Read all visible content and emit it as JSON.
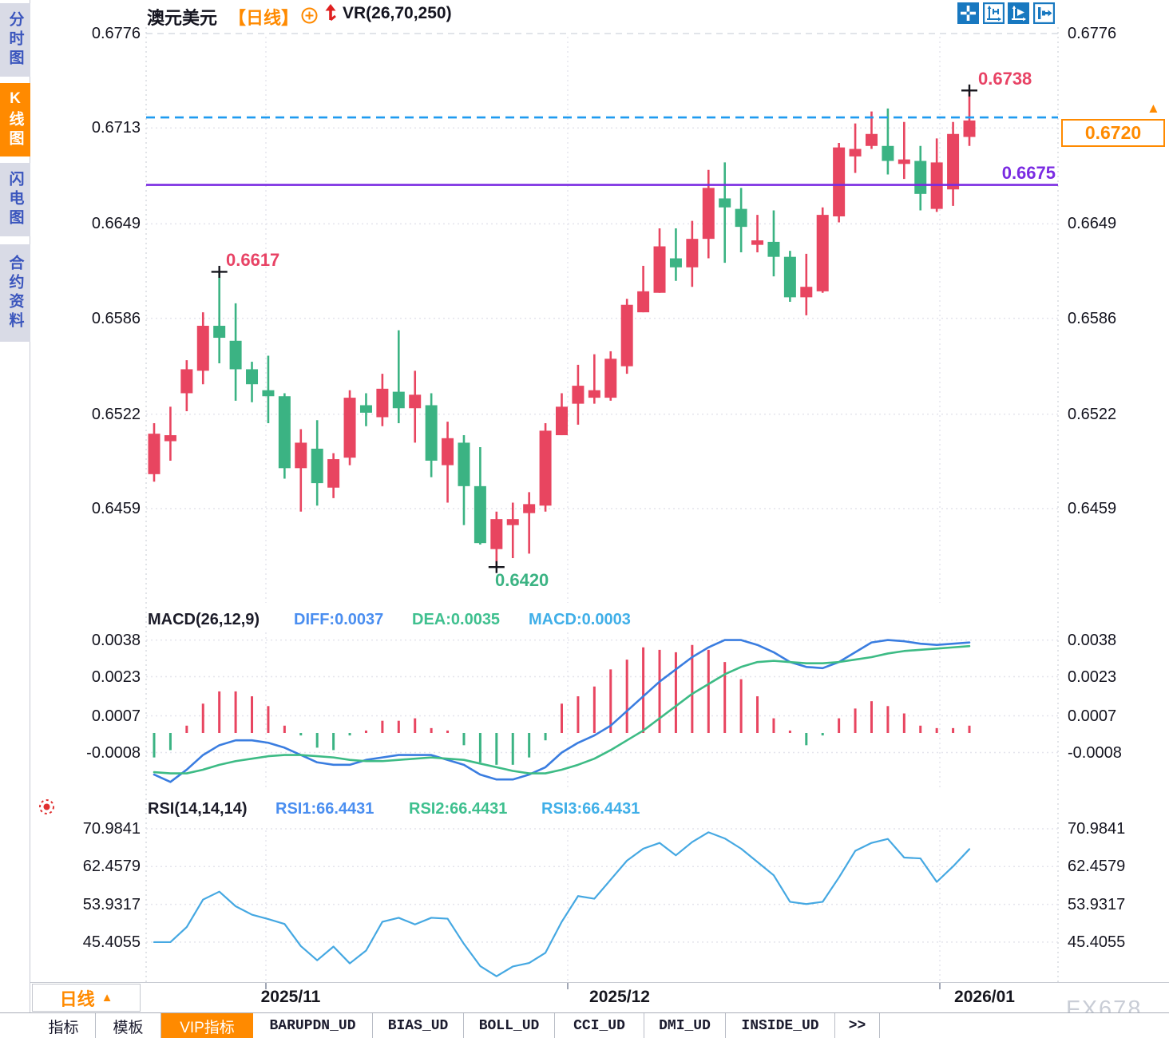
{
  "header": {
    "symbol": "澳元美元",
    "period_tag": "【日线】",
    "indicator": "VR(26,70,250)"
  },
  "sidebar": {
    "items": [
      {
        "label": "分时图",
        "active": false
      },
      {
        "label": "K线图",
        "active": true
      },
      {
        "label": "闪电图",
        "active": false
      },
      {
        "label": "合约资料",
        "active": false
      }
    ]
  },
  "toolbar": {
    "icons": [
      "pan-icon",
      "axis-scale-icon",
      "axis-auto-icon",
      "exit-icon"
    ]
  },
  "icons": {
    "up_triangle": "▲"
  },
  "price_axis": {
    "labels": [
      "0.6776",
      "0.6713",
      "0.6649",
      "0.6586",
      "0.6522",
      "0.6459"
    ]
  },
  "macd": {
    "title": "MACD(26,12,9)",
    "diff_label": "DIFF:0.0037",
    "dea_label": "DEA:0.0035",
    "macd_label": "MACD:0.0003",
    "axis": [
      "0.0038",
      "0.0023",
      "0.0007",
      "-0.0008"
    ]
  },
  "rsi": {
    "title": "RSI(14,14,14)",
    "rsi1_label": "RSI1:66.4431",
    "rsi2_label": "RSI2:66.4431",
    "rsi3_label": "RSI3:66.4431",
    "axis": [
      "70.9841",
      "62.4579",
      "53.9317",
      "45.4055"
    ]
  },
  "annotations": {
    "high_label": "0.6738",
    "peak_label": "0.6617",
    "low_label": "0.6420",
    "support_label": "0.6675",
    "current_price": "0.6720"
  },
  "x_axis": {
    "labels": [
      "2025/11",
      "2025/12",
      "2026/01"
    ]
  },
  "period_button": "日线",
  "bottom_tabs": [
    {
      "label": "指标",
      "active": false
    },
    {
      "label": "模板",
      "active": false
    },
    {
      "label": "VIP指标",
      "active": true
    },
    {
      "label": "BARUPDN_UD",
      "active": false
    },
    {
      "label": "BIAS_UD",
      "active": false
    },
    {
      "label": "BOLL_UD",
      "active": false
    },
    {
      "label": "CCI_UD",
      "active": false
    },
    {
      "label": "DMI_UD",
      "active": false
    },
    {
      "label": "INSIDE_UD",
      "active": false
    },
    {
      "label": ">>",
      "active": false
    }
  ],
  "watermark": "FX678",
  "colors": {
    "up": "#e84560",
    "down": "#3bb383",
    "accent_orange": "#ff8a00",
    "line_blue": "#3a7de0",
    "line_green": "#3dbb85",
    "line_lightblue": "#45a8e2",
    "dashed_blue": "#1f9bf0",
    "purple": "#7a2be2",
    "marker_black": "#15151c",
    "grid": "#e4e4ec",
    "grid_dash": "#d7dbe2",
    "icon_blue": "#1878c0",
    "arrow_red": "#e02020"
  },
  "chart_data": [
    {
      "type": "candlestick",
      "title": "澳元美元 日线 (AUD/USD Daily)",
      "color_rule": "red body = close>open (bullish), green body = close<open (bearish)",
      "x_labels": [
        "2025/11",
        "2025/12",
        "2026/01"
      ],
      "y_ticks": [
        0.6776,
        0.6713,
        0.6649,
        0.6586,
        0.6522,
        0.6459
      ],
      "ylim": [
        0.642,
        0.6776
      ],
      "ohlc": [
        [
          0.6482,
          0.6516,
          0.6477,
          0.6509
        ],
        [
          0.6504,
          0.6527,
          0.6491,
          0.6508
        ],
        [
          0.6536,
          0.6558,
          0.6524,
          0.6552
        ],
        [
          0.6551,
          0.659,
          0.6542,
          0.6581
        ],
        [
          0.6581,
          0.6617,
          0.6556,
          0.6573
        ],
        [
          0.6571,
          0.6596,
          0.6531,
          0.6552
        ],
        [
          0.6552,
          0.6557,
          0.653,
          0.6542
        ],
        [
          0.6538,
          0.6561,
          0.6516,
          0.6534
        ],
        [
          0.6534,
          0.6536,
          0.6479,
          0.6486
        ],
        [
          0.6486,
          0.6512,
          0.6457,
          0.6503
        ],
        [
          0.6499,
          0.6518,
          0.6461,
          0.6476
        ],
        [
          0.6473,
          0.6496,
          0.6466,
          0.6492
        ],
        [
          0.6493,
          0.6538,
          0.6488,
          0.6533
        ],
        [
          0.6528,
          0.6536,
          0.6514,
          0.6523
        ],
        [
          0.652,
          0.6549,
          0.6514,
          0.6539
        ],
        [
          0.6537,
          0.6578,
          0.6516,
          0.6526
        ],
        [
          0.6526,
          0.6551,
          0.6503,
          0.6535
        ],
        [
          0.6528,
          0.6536,
          0.648,
          0.6491
        ],
        [
          0.6488,
          0.6517,
          0.6463,
          0.6506
        ],
        [
          0.6503,
          0.6508,
          0.6448,
          0.6474
        ],
        [
          0.6474,
          0.65,
          0.6435,
          0.6436
        ],
        [
          0.6432,
          0.6457,
          0.642,
          0.6452
        ],
        [
          0.6448,
          0.6463,
          0.6426,
          0.6452
        ],
        [
          0.6456,
          0.647,
          0.6429,
          0.6462
        ],
        [
          0.6461,
          0.6516,
          0.6457,
          0.6511
        ],
        [
          0.6508,
          0.6536,
          0.6508,
          0.6527
        ],
        [
          0.6529,
          0.6555,
          0.6515,
          0.6541
        ],
        [
          0.6533,
          0.6562,
          0.6529,
          0.6538
        ],
        [
          0.6533,
          0.6564,
          0.6531,
          0.6559
        ],
        [
          0.6554,
          0.6599,
          0.6549,
          0.6595
        ],
        [
          0.659,
          0.6621,
          0.659,
          0.6604
        ],
        [
          0.6603,
          0.6646,
          0.6603,
          0.6634
        ],
        [
          0.6626,
          0.6646,
          0.6611,
          0.662
        ],
        [
          0.662,
          0.6651,
          0.6607,
          0.6639
        ],
        [
          0.6639,
          0.6685,
          0.6626,
          0.6673
        ],
        [
          0.6666,
          0.669,
          0.6623,
          0.666
        ],
        [
          0.6659,
          0.6673,
          0.663,
          0.6647
        ],
        [
          0.6635,
          0.6655,
          0.663,
          0.6638
        ],
        [
          0.6637,
          0.6658,
          0.6614,
          0.6627
        ],
        [
          0.6627,
          0.6631,
          0.6597,
          0.66
        ],
        [
          0.66,
          0.6629,
          0.6588,
          0.6607
        ],
        [
          0.6604,
          0.666,
          0.6603,
          0.6655
        ],
        [
          0.6654,
          0.6703,
          0.665,
          0.67
        ],
        [
          0.6694,
          0.6716,
          0.6683,
          0.6699
        ],
        [
          0.6701,
          0.6724,
          0.6699,
          0.6709
        ],
        [
          0.6701,
          0.6726,
          0.6682,
          0.6691
        ],
        [
          0.6689,
          0.6717,
          0.6679,
          0.6692
        ],
        [
          0.6691,
          0.6701,
          0.6658,
          0.6669
        ],
        [
          0.6659,
          0.6706,
          0.6657,
          0.669
        ],
        [
          0.6672,
          0.6717,
          0.6661,
          0.6709
        ],
        [
          0.6707,
          0.6738,
          0.6701,
          0.6718
        ]
      ],
      "hlines": [
        {
          "name": "current-price-line",
          "value": 0.672,
          "style": "dashed",
          "color": "#1f9bf0"
        },
        {
          "name": "support-line",
          "value": 0.6675,
          "style": "solid",
          "color": "#7a2be2"
        }
      ],
      "markers": [
        {
          "index": 4,
          "at": "high",
          "value": 0.6617,
          "label": "0.6617"
        },
        {
          "index": 21,
          "at": "low",
          "value": 0.642,
          "label": "0.6420"
        },
        {
          "index": 50,
          "at": "high",
          "value": 0.6738,
          "label": "0.6738"
        }
      ]
    },
    {
      "type": "bar",
      "title": "MACD(26,12,9)",
      "legend": {
        "diff": 0.0037,
        "dea": 0.0035,
        "macd": 0.0003
      },
      "y_ticks": [
        0.0038,
        0.0023,
        0.0007,
        -0.0008
      ],
      "histogram": [
        -0.001,
        -0.0007,
        0.0003,
        0.0012,
        0.0017,
        0.0017,
        0.0015,
        0.0011,
        0.0003,
        -0.0001,
        -0.0006,
        -0.0007,
        -0.0001,
        0.0001,
        0.0005,
        0.0005,
        0.0006,
        0.0002,
        0.0001,
        -0.0005,
        -0.0012,
        -0.0013,
        -0.0013,
        -0.001,
        -0.0003,
        0.0012,
        0.0015,
        0.0019,
        0.0026,
        0.003,
        0.0035,
        0.0034,
        0.0033,
        0.0036,
        0.0034,
        0.0029,
        0.0022,
        0.0015,
        0.0006,
        0.0001,
        -0.0005,
        -0.0001,
        0.0006,
        0.001,
        0.0013,
        0.0011,
        0.0008,
        0.0003,
        0.0002,
        0.0002,
        0.0003
      ],
      "diff": [
        -0.0017,
        -0.002,
        -0.0015,
        -0.0009,
        -0.0005,
        -0.0003,
        -0.0003,
        -0.0004,
        -0.0006,
        -0.0009,
        -0.0012,
        -0.0013,
        -0.0013,
        -0.0011,
        -0.001,
        -0.0009,
        -0.0009,
        -0.0009,
        -0.0011,
        -0.0013,
        -0.0017,
        -0.0019,
        -0.0019,
        -0.0017,
        -0.0014,
        -0.0008,
        -0.0004,
        -0.0001,
        0.0003,
        0.0009,
        0.0015,
        0.0021,
        0.0026,
        0.0031,
        0.0035,
        0.0038,
        0.0038,
        0.0036,
        0.0033,
        0.0029,
        0.0027,
        0.00265,
        0.0029,
        0.0033,
        0.0037,
        0.0038,
        0.00375,
        0.00365,
        0.0036,
        0.00365,
        0.0037
      ],
      "dea": [
        -0.0016,
        -0.00165,
        -0.00165,
        -0.0015,
        -0.0013,
        -0.00115,
        -0.00105,
        -0.00095,
        -0.0009,
        -0.0009,
        -0.00095,
        -0.001,
        -0.0011,
        -0.00115,
        -0.00115,
        -0.0011,
        -0.00105,
        -0.001,
        -0.00105,
        -0.0011,
        -0.00125,
        -0.0014,
        -0.00155,
        -0.00165,
        -0.00165,
        -0.0015,
        -0.0013,
        -0.00105,
        -0.0007,
        -0.0003,
        0.0001,
        0.0006,
        0.0011,
        0.0016,
        0.002,
        0.0024,
        0.0027,
        0.0029,
        0.00295,
        0.0029,
        0.00285,
        0.00285,
        0.0029,
        0.003,
        0.0031,
        0.00325,
        0.00335,
        0.0034,
        0.00345,
        0.0035,
        0.00355
      ]
    },
    {
      "type": "line",
      "title": "RSI(14,14,14)",
      "legend": {
        "rsi1": 66.4431,
        "rsi2": 66.4431,
        "rsi3": 66.4431
      },
      "y_ticks": [
        70.9841,
        62.4579,
        53.9317,
        45.4055
      ],
      "values": [
        45.4,
        45.4,
        48.8,
        55.0,
        56.8,
        53.5,
        51.6,
        50.6,
        49.5,
        44.5,
        41.3,
        44.4,
        40.6,
        43.5,
        50.0,
        50.9,
        49.4,
        50.9,
        50.7,
        45.0,
        40.0,
        37.7,
        39.9,
        40.7,
        43.0,
        50.0,
        55.8,
        55.2,
        59.5,
        63.8,
        66.5,
        67.8,
        65.0,
        68.0,
        70.2,
        68.8,
        66.5,
        63.5,
        60.5,
        54.5,
        54.0,
        54.5,
        60.0,
        66.0,
        67.8,
        68.7,
        64.5,
        64.3,
        59.0,
        62.5,
        66.4
      ]
    }
  ]
}
